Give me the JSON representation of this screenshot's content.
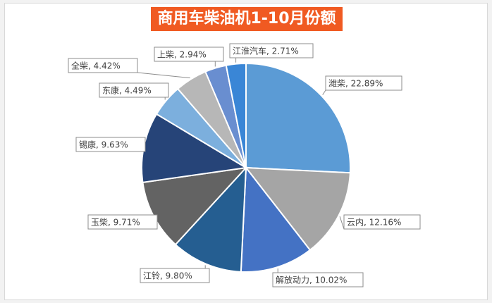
{
  "chart_data": {
    "type": "pie",
    "title": "商用车柴油机1-10月份额",
    "labels": [
      "潍柴, 22.89%",
      "云内, 12.16%",
      "解放动力, 10.02%",
      "江铃, 9.80%",
      "玉柴, 9.71%",
      "锡康, 9.63%",
      "东康, 4.49%",
      "全柴, 4.42%",
      "上柴, 2.94%",
      "江淮汽车, 2.71%"
    ],
    "values": [
      22.89,
      12.16,
      10.02,
      9.8,
      9.71,
      9.63,
      4.49,
      4.42,
      2.94,
      2.71
    ],
    "colors": [
      "#5b9bd5",
      "#a5a5a5",
      "#4472c4",
      "#255e91",
      "#636363",
      "#264478",
      "#7cafdd",
      "#b7b7b7",
      "#698ed0",
      "#3a86d6"
    ]
  }
}
